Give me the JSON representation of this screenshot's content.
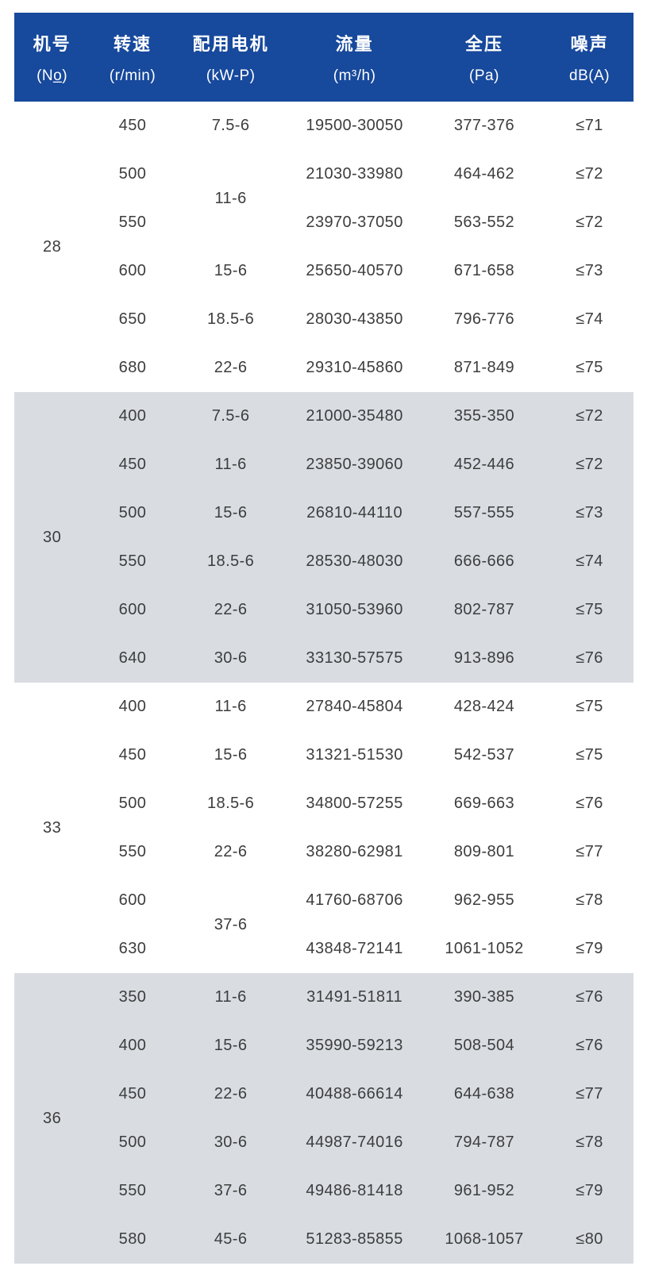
{
  "table": {
    "columns": [
      {
        "title": "机号",
        "unit": "(No̲)"
      },
      {
        "title": "转速",
        "unit": "(r/min)"
      },
      {
        "title": "配用电机",
        "unit": "(kW-P)"
      },
      {
        "title": "流量",
        "unit": "(m³/h)"
      },
      {
        "title": "全压",
        "unit": "(Pa)"
      },
      {
        "title": "噪声",
        "unit": "dB(A)"
      }
    ],
    "groups": [
      {
        "no": "28",
        "rows": [
          {
            "speed": "450",
            "motor": "7.5-6",
            "flow": "19500-30050",
            "pressure": "377-376",
            "noise": "≤71"
          },
          {
            "speed": "500",
            "motor": "11-6",
            "motor_rowspan": 2,
            "flow": "21030-33980",
            "pressure": "464-462",
            "noise": "≤72"
          },
          {
            "speed": "550",
            "motor": null,
            "flow": "23970-37050",
            "pressure": "563-552",
            "noise": "≤72"
          },
          {
            "speed": "600",
            "motor": "15-6",
            "flow": "25650-40570",
            "pressure": "671-658",
            "noise": "≤73"
          },
          {
            "speed": "650",
            "motor": "18.5-6",
            "flow": "28030-43850",
            "pressure": "796-776",
            "noise": "≤74"
          },
          {
            "speed": "680",
            "motor": "22-6",
            "flow": "29310-45860",
            "pressure": "871-849",
            "noise": "≤75"
          }
        ]
      },
      {
        "no": "30",
        "rows": [
          {
            "speed": "400",
            "motor": "7.5-6",
            "flow": "21000-35480",
            "pressure": "355-350",
            "noise": "≤72"
          },
          {
            "speed": "450",
            "motor": "11-6",
            "flow": "23850-39060",
            "pressure": "452-446",
            "noise": "≤72"
          },
          {
            "speed": "500",
            "motor": "15-6",
            "flow": "26810-44110",
            "pressure": "557-555",
            "noise": "≤73"
          },
          {
            "speed": "550",
            "motor": "18.5-6",
            "flow": "28530-48030",
            "pressure": "666-666",
            "noise": "≤74"
          },
          {
            "speed": "600",
            "motor": "22-6",
            "flow": "31050-53960",
            "pressure": "802-787",
            "noise": "≤75"
          },
          {
            "speed": "640",
            "motor": "30-6",
            "flow": "33130-57575",
            "pressure": "913-896",
            "noise": "≤76"
          }
        ]
      },
      {
        "no": "33",
        "rows": [
          {
            "speed": "400",
            "motor": "11-6",
            "flow": "27840-45804",
            "pressure": "428-424",
            "noise": "≤75"
          },
          {
            "speed": "450",
            "motor": "15-6",
            "flow": "31321-51530",
            "pressure": "542-537",
            "noise": "≤75"
          },
          {
            "speed": "500",
            "motor": "18.5-6",
            "flow": "34800-57255",
            "pressure": "669-663",
            "noise": "≤76"
          },
          {
            "speed": "550",
            "motor": "22-6",
            "flow": "38280-62981",
            "pressure": "809-801",
            "noise": "≤77"
          },
          {
            "speed": "600",
            "motor": "37-6",
            "motor_rowspan": 2,
            "flow": "41760-68706",
            "pressure": "962-955",
            "noise": "≤78"
          },
          {
            "speed": "630",
            "motor": null,
            "flow": "43848-72141",
            "pressure": "1061-1052",
            "noise": "≤79"
          }
        ]
      },
      {
        "no": "36",
        "rows": [
          {
            "speed": "350",
            "motor": "11-6",
            "flow": "31491-51811",
            "pressure": "390-385",
            "noise": "≤76"
          },
          {
            "speed": "400",
            "motor": "15-6",
            "flow": "35990-59213",
            "pressure": "508-504",
            "noise": "≤76"
          },
          {
            "speed": "450",
            "motor": "22-6",
            "flow": "40488-66614",
            "pressure": "644-638",
            "noise": "≤77"
          },
          {
            "speed": "500",
            "motor": "30-6",
            "flow": "44987-74016",
            "pressure": "794-787",
            "noise": "≤78"
          },
          {
            "speed": "550",
            "motor": "37-6",
            "flow": "49486-81418",
            "pressure": "961-952",
            "noise": "≤79"
          },
          {
            "speed": "580",
            "motor": "45-6",
            "flow": "51283-85855",
            "pressure": "1068-1057",
            "noise": "≤80"
          }
        ]
      }
    ]
  },
  "colors": {
    "header_bg": "#17499c",
    "header_text": "#ffffff",
    "shaded_row_bg": "#d9dde2",
    "body_text": "#3d3d3d"
  }
}
